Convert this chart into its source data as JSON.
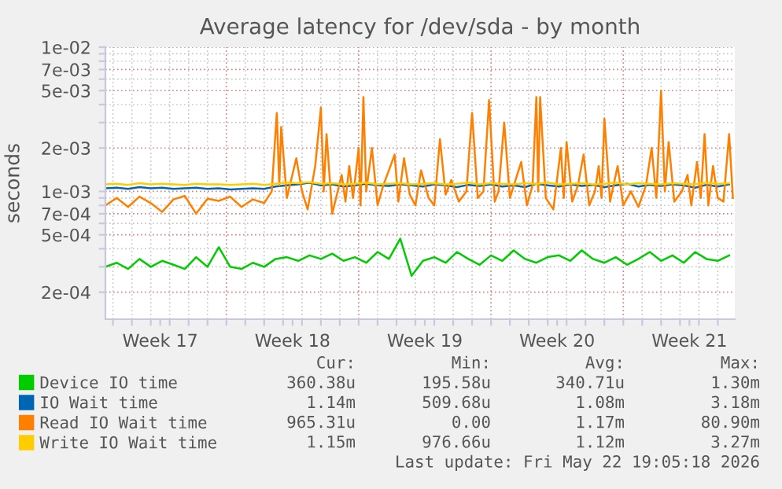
{
  "chart_data": {
    "type": "line",
    "title": "Average latency for /dev/sda - by month",
    "ylabel": "seconds",
    "log": "y",
    "grid": true,
    "legend": "bottom",
    "marker": "none",
    "line_style": "solid",
    "xlim": [
      "2026-04-20T14:24",
      "2026-05-23T21:36"
    ],
    "ylim": [
      0.00013,
      0.01
    ],
    "xticks": [
      {
        "value": "2026-04-21",
        "label": null
      },
      {
        "value": "2026-04-22",
        "label": null
      },
      {
        "value": "2026-04-23",
        "label": null
      },
      {
        "value": "2026-04-23T12:00",
        "label": "Week 17"
      },
      {
        "value": "2026-04-24",
        "label": null
      },
      {
        "value": "2026-04-25",
        "label": null
      },
      {
        "value": "2026-04-26",
        "label": null
      },
      {
        "value": "2026-04-27",
        "label": null
      },
      {
        "value": "2026-04-28",
        "label": null
      },
      {
        "value": "2026-04-29",
        "label": null
      },
      {
        "value": "2026-04-30",
        "label": null
      },
      {
        "value": "2026-04-30T12:00",
        "label": "Week 18"
      },
      {
        "value": "2026-05-01",
        "label": null
      },
      {
        "value": "2026-05-02",
        "label": null
      },
      {
        "value": "2026-05-03",
        "label": null
      },
      {
        "value": "2026-05-04",
        "label": null
      },
      {
        "value": "2026-05-05",
        "label": null
      },
      {
        "value": "2026-05-06",
        "label": null
      },
      {
        "value": "2026-05-07",
        "label": null
      },
      {
        "value": "2026-05-07T12:00",
        "label": "Week 19"
      },
      {
        "value": "2026-05-08",
        "label": null
      },
      {
        "value": "2026-05-09",
        "label": null
      },
      {
        "value": "2026-05-10",
        "label": null
      },
      {
        "value": "2026-05-11",
        "label": null
      },
      {
        "value": "2026-05-12",
        "label": null
      },
      {
        "value": "2026-05-13",
        "label": null
      },
      {
        "value": "2026-05-14",
        "label": null
      },
      {
        "value": "2026-05-14T12:00",
        "label": "Week 20"
      },
      {
        "value": "2026-05-15",
        "label": null
      },
      {
        "value": "2026-05-16",
        "label": null
      },
      {
        "value": "2026-05-17",
        "label": null
      },
      {
        "value": "2026-05-18",
        "label": null
      },
      {
        "value": "2026-05-19",
        "label": null
      },
      {
        "value": "2026-05-20",
        "label": null
      },
      {
        "value": "2026-05-21",
        "label": null
      },
      {
        "value": "2026-05-21T12:00",
        "label": "Week 21"
      },
      {
        "value": "2026-05-22",
        "label": null
      },
      {
        "value": "2026-05-23",
        "label": null
      }
    ],
    "yticks": [
      {
        "value": 0.0002,
        "label": "2e-04"
      },
      {
        "value": 0.0003,
        "label": null
      },
      {
        "value": 0.0004,
        "label": null
      },
      {
        "value": 0.0005,
        "label": "5e-04"
      },
      {
        "value": 0.0006,
        "label": null
      },
      {
        "value": 0.0007,
        "label": "7e-04"
      },
      {
        "value": 0.0008,
        "label": null
      },
      {
        "value": 0.0009,
        "label": null
      },
      {
        "value": 0.001,
        "label": "1e-03"
      },
      {
        "value": 0.002,
        "label": "2e-03"
      },
      {
        "value": 0.003,
        "label": null
      },
      {
        "value": 0.004,
        "label": null
      },
      {
        "value": 0.005,
        "label": "5e-03"
      },
      {
        "value": 0.006,
        "label": null
      },
      {
        "value": 0.007,
        "label": "7e-03"
      },
      {
        "value": 0.008,
        "label": null
      },
      {
        "value": 0.009,
        "label": null
      },
      {
        "value": 0.01,
        "label": "1e-02"
      }
    ],
    "x": [
      "2026-04-20T14:24",
      "2026-04-21T04:48",
      "2026-04-21T19:12",
      "2026-04-22T09:36",
      "2026-04-23T00:00",
      "2026-04-23T14:24",
      "2026-04-24T04:48",
      "2026-04-24T19:12",
      "2026-04-25T09:36",
      "2026-04-26T00:00",
      "2026-04-26T14:24",
      "2026-04-27T04:48",
      "2026-04-27T19:12",
      "2026-04-28T09:36",
      "2026-04-29T00:00",
      "2026-04-29T14:24",
      "2026-04-30T04:48",
      "2026-04-30T19:12",
      "2026-05-01T09:36",
      "2026-05-02T00:00",
      "2026-05-02T14:24",
      "2026-05-03T04:48",
      "2026-05-03T19:12",
      "2026-05-04T09:36",
      "2026-05-05T00:00",
      "2026-05-05T14:24",
      "2026-05-06T04:48",
      "2026-05-06T19:12",
      "2026-05-07T09:36",
      "2026-05-08T00:00",
      "2026-05-08T14:24",
      "2026-05-09T04:48",
      "2026-05-09T19:12",
      "2026-05-10T09:36",
      "2026-05-11T00:00",
      "2026-05-11T14:24",
      "2026-05-12T04:48",
      "2026-05-12T19:12",
      "2026-05-13T09:36",
      "2026-05-14T00:00",
      "2026-05-14T14:24",
      "2026-05-15T04:48",
      "2026-05-15T19:12",
      "2026-05-16T09:36",
      "2026-05-17T00:00",
      "2026-05-17T14:24",
      "2026-05-18T04:48",
      "2026-05-18T19:12",
      "2026-05-19T09:36",
      "2026-05-20T00:00",
      "2026-05-20T14:24",
      "2026-05-21T04:48",
      "2026-05-21T19:12",
      "2026-05-22T09:36",
      "2026-05-23T00:00",
      "2026-05-23T14:24"
    ],
    "series": [
      {
        "name": "Device IO time",
        "color": "#00cc00",
        "values": [
          0.0003,
          0.00032,
          0.00029,
          0.00034,
          0.0003,
          0.00033,
          0.00031,
          0.00029,
          0.00035,
          0.0003,
          0.00041,
          0.0003,
          0.00029,
          0.00032,
          0.0003,
          0.00034,
          0.00035,
          0.00033,
          0.00036,
          0.00034,
          0.00037,
          0.00033,
          0.00035,
          0.00032,
          0.00038,
          0.00034,
          0.00047,
          0.00026,
          0.00033,
          0.00035,
          0.00032,
          0.00038,
          0.00034,
          0.00031,
          0.00036,
          0.00033,
          0.00039,
          0.00034,
          0.00032,
          0.00035,
          0.00036,
          0.00033,
          0.00039,
          0.00034,
          0.00032,
          0.00035,
          0.00031,
          0.00034,
          0.00038,
          0.00033,
          0.00036,
          0.00032,
          0.00038,
          0.00034,
          0.00033,
          0.00036
        ]
      },
      {
        "name": "IO Wait time",
        "color": "#0066b3",
        "values": [
          0.00105,
          0.00106,
          0.00104,
          0.00107,
          0.00105,
          0.00106,
          0.00104,
          0.00105,
          0.00106,
          0.00104,
          0.00105,
          0.00103,
          0.00104,
          0.00105,
          0.00104,
          0.00108,
          0.0011,
          0.00112,
          0.00115,
          0.0011,
          0.00112,
          0.00108,
          0.0011,
          0.00113,
          0.0011,
          0.00109,
          0.00112,
          0.0011,
          0.00108,
          0.00112,
          0.0011,
          0.00107,
          0.00111,
          0.00109,
          0.00112,
          0.00108,
          0.0011,
          0.00107,
          0.00113,
          0.0011,
          0.00108,
          0.00112,
          0.00109,
          0.00111,
          0.00107,
          0.0011,
          0.00113,
          0.00108,
          0.00111,
          0.00109,
          0.00112,
          0.0011,
          0.00106,
          0.00111,
          0.00108,
          0.00112
        ]
      },
      {
        "name": "Read IO Wait time",
        "color": "#ff8000",
        "x": [
          "2026-04-20T14:24",
          "2026-04-21T04:48",
          "2026-04-21T19:12",
          "2026-04-22T09:36",
          "2026-04-23T00:00",
          "2026-04-23T14:24",
          "2026-04-24T04:48",
          "2026-04-24T19:12",
          "2026-04-25T09:36",
          "2026-04-26T00:00",
          "2026-04-26T14:24",
          "2026-04-27T04:48",
          "2026-04-27T19:12",
          "2026-04-28T09:36",
          "2026-04-29T00:00",
          "2026-04-29T09:36",
          "2026-04-29T16:00",
          "2026-04-29T19:12",
          "2026-04-29T21:36",
          "2026-04-30T04:48",
          "2026-04-30T16:48",
          "2026-05-01T00:00",
          "2026-05-01T07:12",
          "2026-05-01T16:48",
          "2026-05-02T00:00",
          "2026-05-02T03:36",
          "2026-05-02T07:12",
          "2026-05-02T14:24",
          "2026-05-03T02:24",
          "2026-05-03T07:12",
          "2026-05-03T12:00",
          "2026-05-03T16:48",
          "2026-05-04T00:00",
          "2026-05-04T02:24",
          "2026-05-04T06:00",
          "2026-05-04T09:36",
          "2026-05-04T16:48",
          "2026-05-05T00:00",
          "2026-05-05T07:12",
          "2026-05-05T14:24",
          "2026-05-05T21:36",
          "2026-05-06T02:24",
          "2026-05-06T09:36",
          "2026-05-06T16:48",
          "2026-05-07T00:00",
          "2026-05-07T07:12",
          "2026-05-07T16:48",
          "2026-05-08T00:00",
          "2026-05-08T07:12",
          "2026-05-08T14:24",
          "2026-05-08T21:36",
          "2026-05-09T07:12",
          "2026-05-09T16:48",
          "2026-05-10T00:00",
          "2026-05-10T07:12",
          "2026-05-10T14:24",
          "2026-05-10T21:36",
          "2026-05-11T04:48",
          "2026-05-11T09:36",
          "2026-05-11T16:48",
          "2026-05-12T00:00",
          "2026-05-12T07:12",
          "2026-05-12T14:24",
          "2026-05-12T21:36",
          "2026-05-13T04:48",
          "2026-05-13T09:36",
          "2026-05-13T12:00",
          "2026-05-13T14:24",
          "2026-05-13T21:36",
          "2026-05-14T07:12",
          "2026-05-14T16:48",
          "2026-05-14T20:24",
          "2026-05-15T00:00",
          "2026-05-15T07:12",
          "2026-05-15T14:24",
          "2026-05-15T21:36",
          "2026-05-16T04:48",
          "2026-05-16T12:00",
          "2026-05-16T16:48",
          "2026-05-16T20:24",
          "2026-05-17T00:00",
          "2026-05-17T07:12",
          "2026-05-17T16:48",
          "2026-05-18T00:00",
          "2026-05-18T09:36",
          "2026-05-18T19:12",
          "2026-05-19T04:48",
          "2026-05-19T12:00",
          "2026-05-19T18:00",
          "2026-05-20T00:00",
          "2026-05-20T04:48",
          "2026-05-20T09:36",
          "2026-05-20T16:48",
          "2026-05-21T02:24",
          "2026-05-21T09:36",
          "2026-05-21T14:24",
          "2026-05-21T21:36",
          "2026-05-22T02:24",
          "2026-05-22T07:12",
          "2026-05-22T12:00",
          "2026-05-22T18:00",
          "2026-05-23T00:00",
          "2026-05-23T07:12",
          "2026-05-23T14:24",
          "2026-05-23T19:12"
        ],
        "values": [
          0.0008,
          0.0009,
          0.00078,
          0.00092,
          0.00083,
          0.00072,
          0.00088,
          0.00093,
          0.0007,
          0.00089,
          0.00086,
          0.00092,
          0.00078,
          0.00088,
          0.00083,
          0.001,
          0.0035,
          0.0011,
          0.0028,
          0.0009,
          0.0017,
          0.001,
          0.00075,
          0.0015,
          0.0038,
          0.001,
          0.0025,
          0.0007,
          0.0013,
          0.00085,
          0.0015,
          0.0009,
          0.002,
          0.0008,
          0.0045,
          0.001,
          0.002,
          0.0008,
          0.0011,
          0.0014,
          0.0018,
          0.00085,
          0.0017,
          0.00095,
          0.0008,
          0.0014,
          0.0009,
          0.0008,
          0.0023,
          0.00095,
          0.0012,
          0.00085,
          0.001,
          0.0035,
          0.0009,
          0.001,
          0.0043,
          0.00085,
          0.001,
          0.003,
          0.0009,
          0.0012,
          0.0016,
          0.0008,
          0.0011,
          0.0045,
          0.001,
          0.0045,
          0.0009,
          0.00075,
          0.002,
          0.0009,
          0.0022,
          0.00085,
          0.0011,
          0.0018,
          0.0008,
          0.001,
          0.0015,
          0.0009,
          0.0032,
          0.00085,
          0.0015,
          0.0008,
          0.001,
          0.00078,
          0.0011,
          0.002,
          0.0009,
          0.005,
          0.001,
          0.0022,
          0.00085,
          0.001,
          0.0013,
          0.0008,
          0.0016,
          0.0009,
          0.0025,
          0.0008,
          0.0015,
          0.0009,
          0.00085,
          0.0025,
          0.0009
        ]
      },
      {
        "name": "Write IO Wait time",
        "color": "#ffcc00",
        "values": [
          0.00112,
          0.00113,
          0.00111,
          0.00114,
          0.00112,
          0.00113,
          0.00112,
          0.00111,
          0.00113,
          0.00112,
          0.00112,
          0.00111,
          0.00112,
          0.00113,
          0.00111,
          0.00113,
          0.00115,
          0.00114,
          0.00116,
          0.00113,
          0.00114,
          0.00112,
          0.00113,
          0.00115,
          0.00112,
          0.00113,
          0.00114,
          0.00112,
          0.00113,
          0.00114,
          0.00112,
          0.00113,
          0.00115,
          0.00112,
          0.00114,
          0.00113,
          0.00112,
          0.00114,
          0.00113,
          0.00115,
          0.00112,
          0.00113,
          0.00114,
          0.00112,
          0.00113,
          0.00115,
          0.00112,
          0.00114,
          0.00113,
          0.00112,
          0.00114,
          0.00113,
          0.00112,
          0.00115,
          0.00113,
          0.00114
        ]
      }
    ],
    "annotations": [
      "Cur:",
      "Min:",
      "Avg:",
      "Max:",
      "360.38u",
      "195.58u",
      "340.71u",
      "1.30m",
      "1.14m",
      "509.68u",
      "1.08m",
      "3.18m",
      "965.31u",
      "0.00",
      "1.17m",
      "80.90m",
      "1.15m",
      "976.66u",
      "1.12m",
      "3.27m",
      "Last update: Fri May 22 19:05:18 2026"
    ]
  }
}
